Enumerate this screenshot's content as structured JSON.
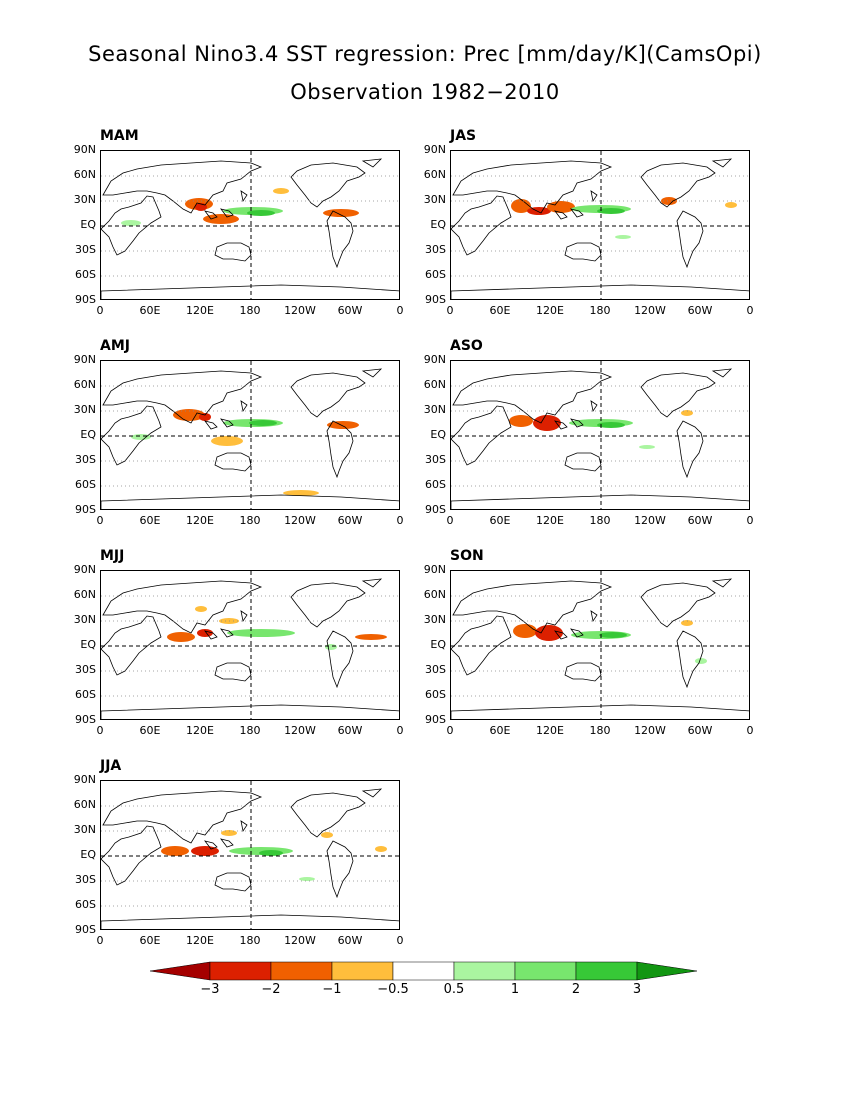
{
  "figure": {
    "title_line1": "Seasonal Nino3.4 SST regression: Prec [mm/day/K](CamsOpi)",
    "title_line2": "Observation 1982−2010"
  },
  "axes": {
    "y_ticks": [
      "90N",
      "60N",
      "30N",
      "EQ",
      "30S",
      "60S",
      "90S"
    ],
    "x_ticks": [
      "0",
      "60E",
      "120E",
      "180",
      "120W",
      "60W",
      "0"
    ]
  },
  "panels": [
    {
      "label": "MAM"
    },
    {
      "label": "JAS"
    },
    {
      "label": "AMJ"
    },
    {
      "label": "ASO"
    },
    {
      "label": "MJJ"
    },
    {
      "label": "SON"
    },
    {
      "label": "JJA"
    }
  ],
  "colorbar": {
    "labels": [
      "−3",
      "−2",
      "−1",
      "−0.5",
      "0.5",
      "1",
      "2",
      "3"
    ],
    "colors": [
      "#a50000",
      "#dc2000",
      "#f06000",
      "#ffbe3c",
      "#ffffff",
      "#aaf5a0",
      "#78e66e",
      "#37c837",
      "#129612"
    ]
  }
}
